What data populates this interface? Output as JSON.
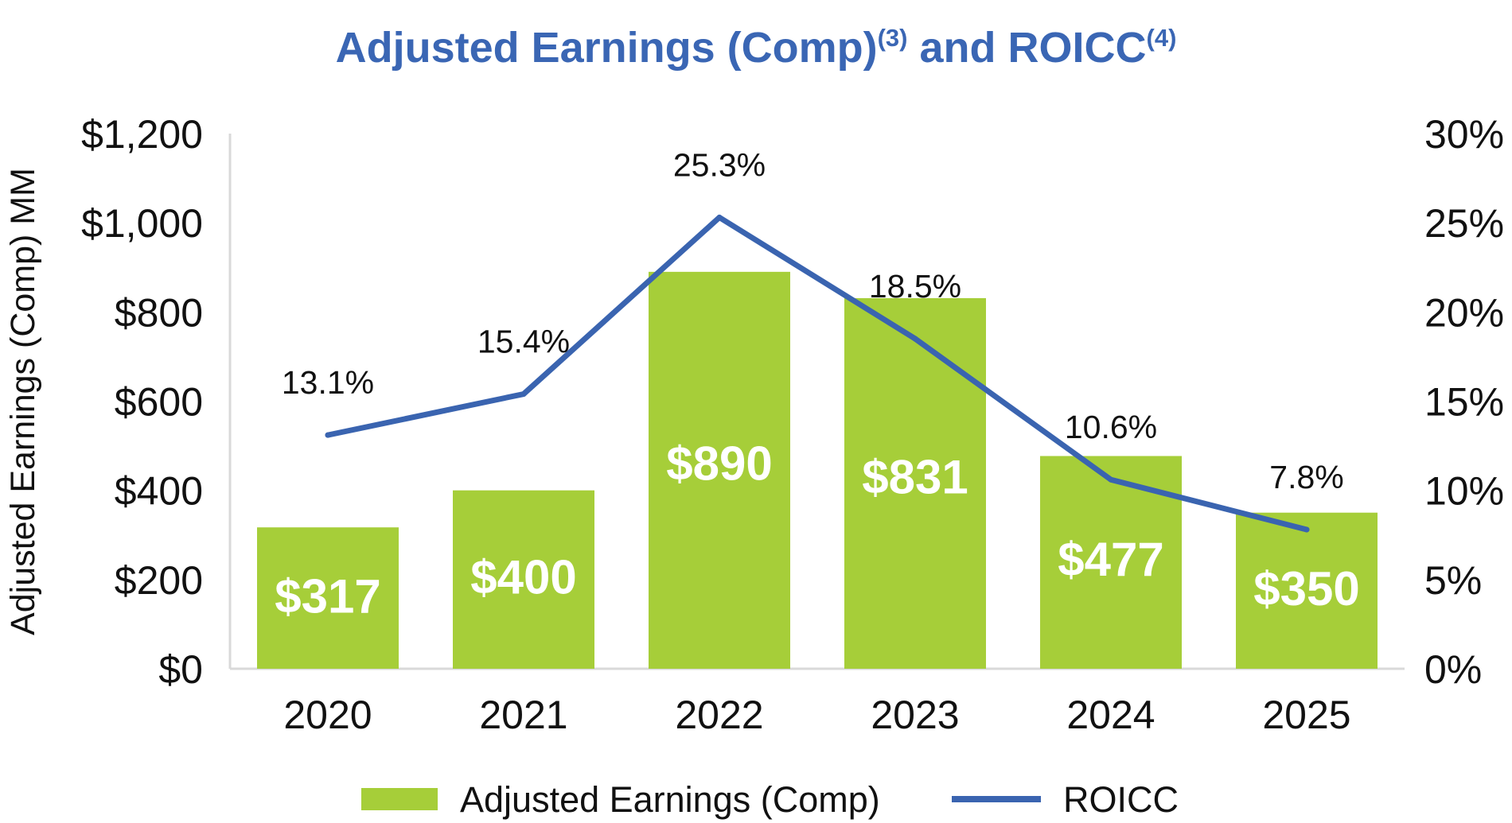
{
  "chart_data": {
    "type": "bar",
    "title": {
      "main": "Adjusted Earnings (Comp)",
      "sup1": "(3)",
      "middle": " and ROICC",
      "sup2": "(4)"
    },
    "categories": [
      "2020",
      "2021",
      "2022",
      "2023",
      "2024",
      "2025"
    ],
    "series": [
      {
        "name": "Adjusted Earnings (Comp)",
        "type": "bar",
        "axis": "left",
        "values": [
          317,
          400,
          890,
          831,
          477,
          350
        ],
        "labels": [
          "$317",
          "$400",
          "$890",
          "$831",
          "$477",
          "$350"
        ],
        "color": "#a6ce39"
      },
      {
        "name": "ROICC",
        "type": "line",
        "axis": "right",
        "values": [
          13.1,
          15.4,
          25.3,
          18.5,
          10.6,
          7.8
        ],
        "labels": [
          "13.1%",
          "15.4%",
          "25.3%",
          "18.5%",
          "10.6%",
          "7.8%"
        ],
        "color": "#3a64b0"
      }
    ],
    "ylabel": "Adjusted Earnings (Comp) MM",
    "ylim": [
      0,
      1200
    ],
    "y2lim": [
      0,
      30
    ],
    "yticks": [
      "$0",
      "$200",
      "$400",
      "$600",
      "$800",
      "$1,000",
      "$1,200"
    ],
    "y2ticks": [
      "0%",
      "5%",
      "10%",
      "15%",
      "20%",
      "25%",
      "30%"
    ],
    "grid": false,
    "legend_position": "bottom"
  }
}
